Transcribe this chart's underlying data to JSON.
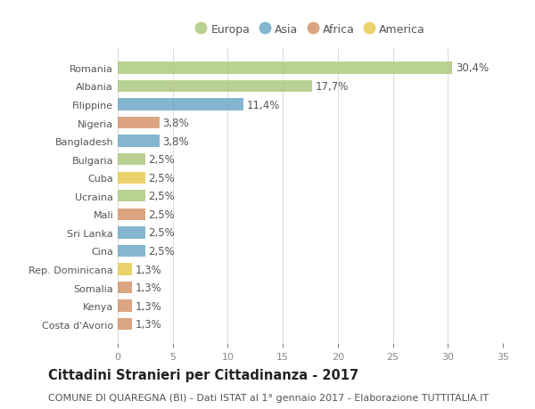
{
  "title": "Cittadini Stranieri per Cittadinanza - 2017",
  "subtitle": "COMUNE DI QUAREGNA (BI) - Dati ISTAT al 1° gennaio 2017 - Elaborazione TUTTITALIA.IT",
  "categories": [
    "Romania",
    "Albania",
    "Filippine",
    "Nigeria",
    "Bangladesh",
    "Bulgaria",
    "Cuba",
    "Ucraina",
    "Mali",
    "Sri Lanka",
    "Cina",
    "Rep. Dominicana",
    "Somalia",
    "Kenya",
    "Costa d'Avorio"
  ],
  "values": [
    30.4,
    17.7,
    11.4,
    3.8,
    3.8,
    2.5,
    2.5,
    2.5,
    2.5,
    2.5,
    2.5,
    1.3,
    1.3,
    1.3,
    1.3
  ],
  "continents": [
    "Europa",
    "Europa",
    "Asia",
    "Africa",
    "Asia",
    "Europa",
    "America",
    "Europa",
    "Africa",
    "Asia",
    "Asia",
    "America",
    "Africa",
    "Africa",
    "Africa"
  ],
  "continent_colors": {
    "Europa": "#adc97e",
    "Asia": "#6fa8c9",
    "Africa": "#d4956a",
    "America": "#e8c94f"
  },
  "legend_order": [
    "Europa",
    "Asia",
    "Africa",
    "America"
  ],
  "xlim": [
    0,
    35
  ],
  "xticks": [
    0,
    5,
    10,
    15,
    20,
    25,
    30,
    35
  ],
  "background_color": "#ffffff",
  "grid_color": "#dddddd",
  "bar_height": 0.65,
  "label_fontsize": 8.5,
  "title_fontsize": 10.5,
  "subtitle_fontsize": 8,
  "legend_fontsize": 9,
  "tick_fontsize": 8
}
